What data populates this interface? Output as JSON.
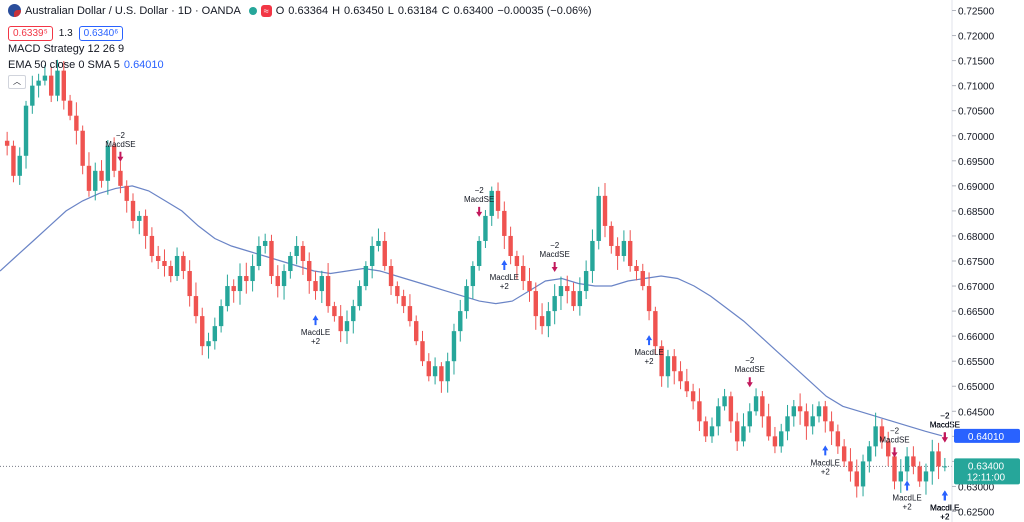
{
  "header": {
    "symbol_title": "Australian Dollar / U.S. Dollar · 1D · OANDA",
    "o_label": "O",
    "o_value": "0.63364",
    "h_label": "H",
    "h_value": "0.63450",
    "l_label": "L",
    "l_value": "0.63184",
    "c_label": "C",
    "c_value": "0.63400",
    "change": "−0.00035 (−0.06%)",
    "bid": "0.6339⁵",
    "spread": "1.3",
    "ask": "0.6340⁶",
    "strategy": "MACD Strategy 12 26 9",
    "ema_label": "EMA 50 close 0 SMA 5",
    "ema_value": "0.64010",
    "collapse_icon": "chevron-up-icon"
  },
  "colors": {
    "up": "#26a69a",
    "down": "#ef5350",
    "ema": "#6a84c6",
    "buy_arrow": "#2962ff",
    "sell_arrow": "#c2185b",
    "price_label": "#26a69a",
    "ema_label": "#2962ff"
  },
  "chart_data": {
    "type": "candlestick",
    "y_axis_ticks": [
      "0.72500",
      "0.72000",
      "0.71500",
      "0.71000",
      "0.70500",
      "0.70000",
      "0.69500",
      "0.69000",
      "0.68500",
      "0.68000",
      "0.67500",
      "0.67000",
      "0.66500",
      "0.66000",
      "0.65500",
      "0.65000",
      "0.64500",
      "0.64000",
      "0.63500",
      "0.63000",
      "0.62500"
    ],
    "ylim": [
      0.6245,
      0.7255
    ],
    "ema_last_label": "0.64010",
    "price_last_label": "0.63400",
    "countdown_label": "12:11:00",
    "close_path": [
      0.698,
      0.692,
      0.696,
      0.706,
      0.71,
      0.711,
      0.712,
      0.708,
      0.713,
      0.707,
      0.704,
      0.701,
      0.694,
      0.689,
      0.693,
      0.691,
      0.698,
      0.693,
      0.69,
      0.687,
      0.683,
      0.684,
      0.68,
      0.676,
      0.675,
      0.674,
      0.672,
      0.676,
      0.673,
      0.668,
      0.664,
      0.658,
      0.659,
      0.662,
      0.666,
      0.67,
      0.669,
      0.672,
      0.671,
      0.674,
      0.678,
      0.679,
      0.672,
      0.67,
      0.673,
      0.676,
      0.678,
      0.675,
      0.671,
      0.669,
      0.672,
      0.666,
      0.664,
      0.661,
      0.663,
      0.666,
      0.67,
      0.674,
      0.678,
      0.679,
      0.674,
      0.67,
      0.668,
      0.666,
      0.663,
      0.659,
      0.655,
      0.652,
      0.654,
      0.651,
      0.655,
      0.661,
      0.665,
      0.67,
      0.674,
      0.679,
      0.684,
      0.689,
      0.685,
      0.68,
      0.676,
      0.674,
      0.671,
      0.669,
      0.664,
      0.662,
      0.665,
      0.668,
      0.67,
      0.669,
      0.666,
      0.669,
      0.673,
      0.679,
      0.688,
      0.682,
      0.678,
      0.676,
      0.679,
      0.674,
      0.673,
      0.67,
      0.665,
      0.658,
      0.652,
      0.656,
      0.653,
      0.651,
      0.649,
      0.647,
      0.643,
      0.64,
      0.642,
      0.646,
      0.648,
      0.643,
      0.639,
      0.642,
      0.645,
      0.648,
      0.644,
      0.64,
      0.638,
      0.641,
      0.644,
      0.646,
      0.645,
      0.642,
      0.644,
      0.646,
      0.643,
      0.641,
      0.638,
      0.635,
      0.633,
      0.63,
      0.635,
      0.638,
      0.642,
      0.639,
      0.636,
      0.631,
      0.633,
      0.636,
      0.634,
      0.631,
      0.633,
      0.637,
      0.634,
      0.634
    ],
    "ema_path": [
      0.673,
      0.676,
      0.679,
      0.682,
      0.685,
      0.687,
      0.6885,
      0.6895,
      0.69,
      0.689,
      0.687,
      0.685,
      0.682,
      0.6795,
      0.678,
      0.677,
      0.676,
      0.675,
      0.674,
      0.673,
      0.6725,
      0.673,
      0.6735,
      0.673,
      0.672,
      0.671,
      0.67,
      0.669,
      0.668,
      0.667,
      0.6665,
      0.667,
      0.669,
      0.671,
      0.6715,
      0.6705,
      0.67,
      0.67,
      0.671,
      0.6715,
      0.672,
      0.6715,
      0.67,
      0.668,
      0.6655,
      0.663,
      0.66,
      0.657,
      0.654,
      0.651,
      0.648,
      0.646,
      0.645,
      0.644,
      0.643,
      0.642,
      0.641,
      0.6401
    ],
    "signals": [
      {
        "label": "MacdSE",
        "qty": "−2",
        "kind": "sell",
        "bar": 18
      },
      {
        "label": "MacdLE",
        "qty": "+2",
        "kind": "buy",
        "bar": 49
      },
      {
        "label": "MacdSE",
        "qty": "−2",
        "kind": "sell",
        "bar": 75
      },
      {
        "label": "MacdLE",
        "qty": "+2",
        "kind": "buy",
        "bar": 79
      },
      {
        "label": "MacdSE",
        "qty": "−2",
        "kind": "sell",
        "bar": 87
      },
      {
        "label": "MacdLE",
        "qty": "+2",
        "kind": "buy",
        "bar": 102
      },
      {
        "label": "MacdSE",
        "qty": "−2",
        "kind": "sell",
        "bar": 118
      },
      {
        "label": "MacdLE",
        "qty": "+2",
        "kind": "buy",
        "bar": 130
      },
      {
        "label": "MacdSE",
        "qty": "−2",
        "kind": "sell",
        "bar": 141
      },
      {
        "label": "MacdLE",
        "qty": "+2",
        "kind": "buy",
        "bar": 143
      },
      {
        "label": "MacdLE",
        "qty": "+2",
        "kind": "buy",
        "bar": 164
      },
      {
        "label": "MacdSE",
        "qty": "−2",
        "kind": "sell",
        "bar": 191
      },
      {
        "label": "MacdLE",
        "qty": "+2",
        "kind": "buy",
        "bar": 196
      },
      {
        "label": "MacdSE",
        "qty": "−2",
        "kind": "sell",
        "bar": 203
      },
      {
        "label": "MacdLE",
        "qty": "+2",
        "kind": "buy",
        "bar": 208
      },
      {
        "label": "MacdSE",
        "qty": "−2",
        "kind": "sell",
        "bar": 214
      },
      {
        "label": "MacdLE",
        "qty": "+2",
        "kind": "buy",
        "bar": 215
      }
    ]
  }
}
